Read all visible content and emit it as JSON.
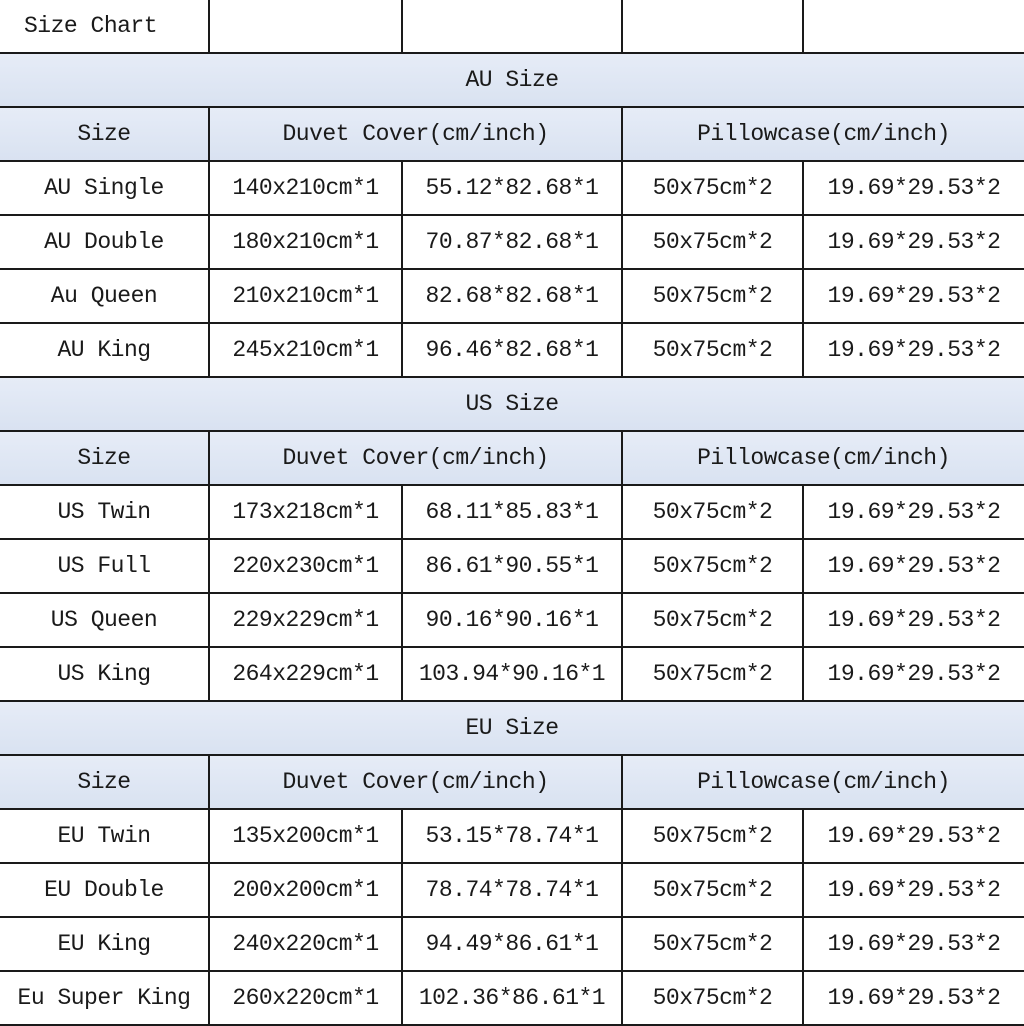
{
  "title": "Size Chart",
  "header": {
    "size": "Size",
    "duvet": "Duvet Cover(cm/inch)",
    "pillow": "Pillowcase(cm/inch)"
  },
  "sections": [
    {
      "name": "AU Size",
      "rows": [
        [
          "AU Single",
          "140x210cm*1",
          "55.12*82.68*1",
          "50x75cm*2",
          "19.69*29.53*2"
        ],
        [
          "AU Double",
          "180x210cm*1",
          "70.87*82.68*1",
          "50x75cm*2",
          "19.69*29.53*2"
        ],
        [
          "Au Queen",
          "210x210cm*1",
          "82.68*82.68*1",
          "50x75cm*2",
          "19.69*29.53*2"
        ],
        [
          "AU King",
          "245x210cm*1",
          "96.46*82.68*1",
          "50x75cm*2",
          "19.69*29.53*2"
        ]
      ]
    },
    {
      "name": "US Size",
      "rows": [
        [
          "US Twin",
          "173x218cm*1",
          "68.11*85.83*1",
          "50x75cm*2",
          "19.69*29.53*2"
        ],
        [
          "US Full",
          "220x230cm*1",
          "86.61*90.55*1",
          "50x75cm*2",
          "19.69*29.53*2"
        ],
        [
          "US Queen",
          "229x229cm*1",
          "90.16*90.16*1",
          "50x75cm*2",
          "19.69*29.53*2"
        ],
        [
          "US King",
          "264x229cm*1",
          "103.94*90.16*1",
          "50x75cm*2",
          "19.69*29.53*2"
        ]
      ]
    },
    {
      "name": "EU Size",
      "rows": [
        [
          "EU Twin",
          "135x200cm*1",
          "53.15*78.74*1",
          "50x75cm*2",
          "19.69*29.53*2"
        ],
        [
          "EU Double",
          "200x200cm*1",
          "78.74*78.74*1",
          "50x75cm*2",
          "19.69*29.53*2"
        ],
        [
          "EU King",
          "240x220cm*1",
          "94.49*86.61*1",
          "50x75cm*2",
          "19.69*29.53*2"
        ],
        [
          "Eu Super King",
          "260x220cm*1",
          "102.36*86.61*1",
          "50x75cm*2",
          "19.69*29.53*2"
        ]
      ]
    }
  ],
  "colors": {
    "header_bg": "#dde5f3",
    "border": "#1a1a1a"
  }
}
